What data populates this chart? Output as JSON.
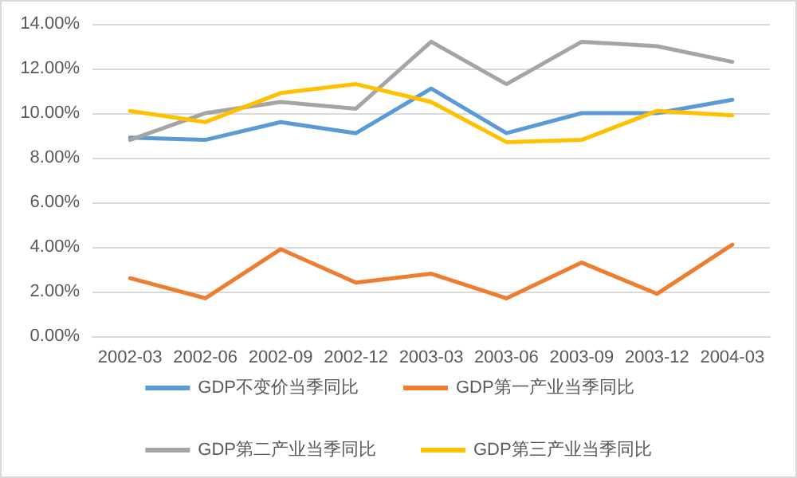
{
  "chart_data": {
    "type": "line",
    "categories": [
      "2002-03",
      "2002-06",
      "2002-09",
      "2002-12",
      "2003-03",
      "2003-06",
      "2003-09",
      "2003-12",
      "2004-03"
    ],
    "series": [
      {
        "name": "GDP不变价当季同比",
        "color": "#5b9bd5",
        "values": [
          8.9,
          8.8,
          9.6,
          9.1,
          11.1,
          9.1,
          10.0,
          10.0,
          10.6
        ]
      },
      {
        "name": "GDP第一产业当季同比",
        "color": "#ed7d31",
        "values": [
          2.6,
          1.7,
          3.9,
          2.4,
          2.8,
          1.7,
          3.3,
          1.9,
          4.1
        ]
      },
      {
        "name": "GDP第二产业当季同比",
        "color": "#a5a5a5",
        "values": [
          8.8,
          10.0,
          10.5,
          10.2,
          13.2,
          11.3,
          13.2,
          13.0,
          12.3
        ]
      },
      {
        "name": "GDP第三产业当季同比",
        "color": "#ffc000",
        "values": [
          10.1,
          9.6,
          10.9,
          11.3,
          10.5,
          8.7,
          8.8,
          10.1,
          9.9
        ]
      }
    ],
    "ylim": [
      0,
      14
    ],
    "yticks": [
      {
        "value": 0,
        "label": "0.00%"
      },
      {
        "value": 2,
        "label": "2.00%"
      },
      {
        "value": 4,
        "label": "4.00%"
      },
      {
        "value": 6,
        "label": "6.00%"
      },
      {
        "value": 8,
        "label": "8.00%"
      },
      {
        "value": 10,
        "label": "10.00%"
      },
      {
        "value": 12,
        "label": "12.00%"
      },
      {
        "value": 14,
        "label": "14.00%"
      }
    ],
    "grid": "y",
    "legend": "bottom",
    "marker": "none",
    "line_style": "solid"
  }
}
